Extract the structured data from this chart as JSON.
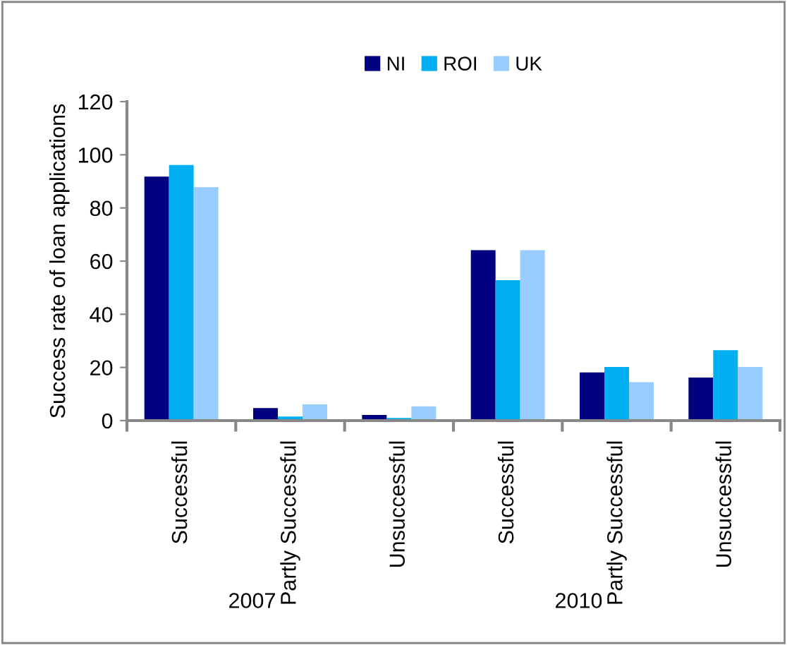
{
  "chart_data": {
    "type": "bar",
    "ylabel": "Success rate of loan applications",
    "categories": [
      "Successful",
      "Partly Successful",
      "Unsuccessful",
      "Successful",
      "Partly Successful",
      "Unsuccessful"
    ],
    "series": [
      {
        "name": "NI",
        "color": "#000080",
        "values": [
          91.8,
          4.7,
          2.1,
          64.1,
          18.1,
          16.2
        ]
      },
      {
        "name": "ROI",
        "color": "#00b0f0",
        "values": [
          96.2,
          1.5,
          1,
          52.8,
          20.2,
          26.5
        ]
      },
      {
        "name": "UK",
        "color": "#99ccff",
        "values": [
          87.8,
          6.1,
          5.4,
          64.1,
          14.5,
          20.2
        ]
      }
    ],
    "annotations": [
      "2007",
      "2010"
    ],
    "ylim": [
      0,
      120
    ],
    "yticks": [
      0,
      20,
      40,
      60,
      80,
      100,
      120
    ],
    "grid": false,
    "legend": "top"
  }
}
